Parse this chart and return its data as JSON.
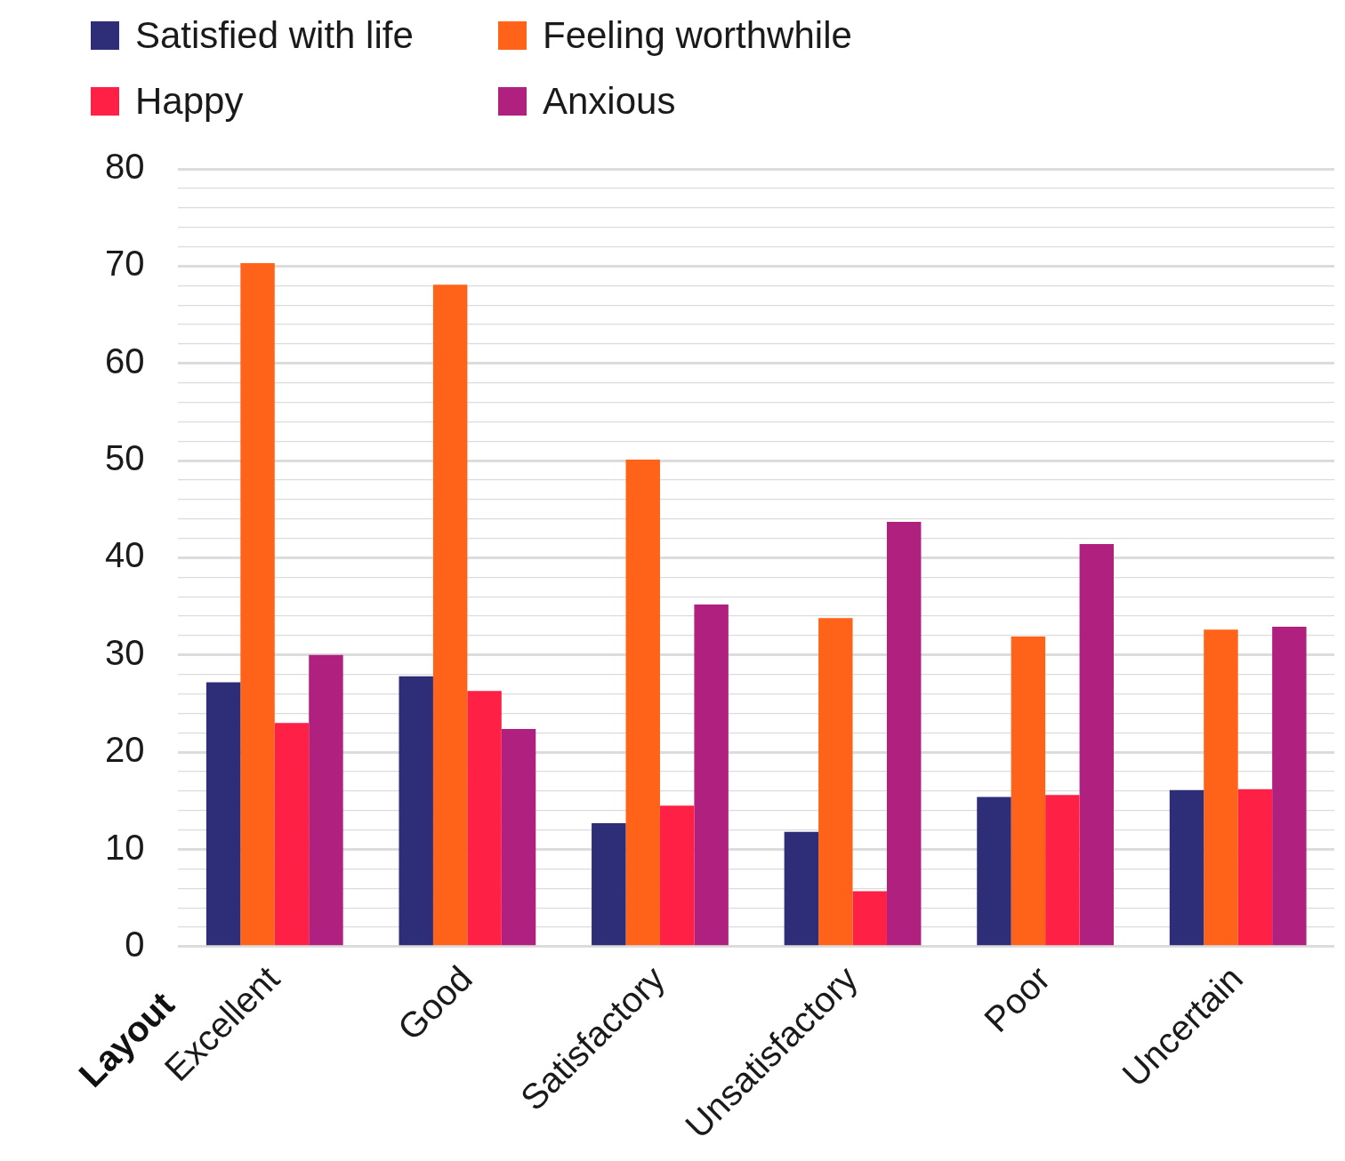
{
  "chart_data": {
    "type": "bar",
    "xlabel": "Layout",
    "categories": [
      "Excellent",
      "Good",
      "Satisfactory",
      "Unsatisfactory",
      "Poor",
      "Uncertain"
    ],
    "series": [
      {
        "name": "Satisfied with life",
        "color": "#2e2e78",
        "values": [
          27.2,
          27.8,
          12.7,
          11.8,
          15.4,
          16.1
        ]
      },
      {
        "name": "Feeling worthwhile",
        "color": "#ff6319",
        "values": [
          70.3,
          68.1,
          50.1,
          33.8,
          31.9,
          32.6
        ]
      },
      {
        "name": "Happy",
        "color": "#ff2046",
        "values": [
          23.0,
          26.3,
          14.5,
          5.7,
          15.6,
          16.2
        ]
      },
      {
        "name": "Anxious",
        "color": "#b0207e",
        "values": [
          30.0,
          22.4,
          35.2,
          43.7,
          41.4,
          32.9
        ]
      }
    ],
    "ylim": [
      0,
      80
    ],
    "yticks": [
      0,
      {
        "value": 2,
        "label": null
      },
      {
        "value": 4,
        "label": null
      },
      {
        "value": 6,
        "label": null
      },
      {
        "value": 8,
        "label": null
      },
      10,
      {
        "value": 12,
        "label": null
      },
      {
        "value": 14,
        "label": null
      },
      {
        "value": 16,
        "label": null
      },
      {
        "value": 18,
        "label": null
      },
      20,
      {
        "value": 22,
        "label": null
      },
      {
        "value": 24,
        "label": null
      },
      {
        "value": 26,
        "label": null
      },
      {
        "value": 28,
        "label": null
      },
      30,
      {
        "value": 32,
        "label": null
      },
      {
        "value": 34,
        "label": null
      },
      {
        "value": 36,
        "label": null
      },
      {
        "value": 38,
        "label": null
      },
      40,
      {
        "value": 42,
        "label": null
      },
      {
        "value": 44,
        "label": null
      },
      {
        "value": 46,
        "label": null
      },
      {
        "value": 48,
        "label": null
      },
      50,
      {
        "value": 52,
        "label": null
      },
      {
        "value": 54,
        "label": null
      },
      {
        "value": 56,
        "label": null
      },
      {
        "value": 58,
        "label": null
      },
      60,
      {
        "value": 62,
        "label": null
      },
      {
        "value": 64,
        "label": null
      },
      {
        "value": 66,
        "label": null
      },
      {
        "value": 68,
        "label": null
      },
      70,
      {
        "value": 72,
        "label": null
      },
      {
        "value": 74,
        "label": null
      },
      {
        "value": 76,
        "label": null
      },
      {
        "value": 78,
        "label": null
      },
      80
    ],
    "grid": "y",
    "legend": "top left"
  }
}
